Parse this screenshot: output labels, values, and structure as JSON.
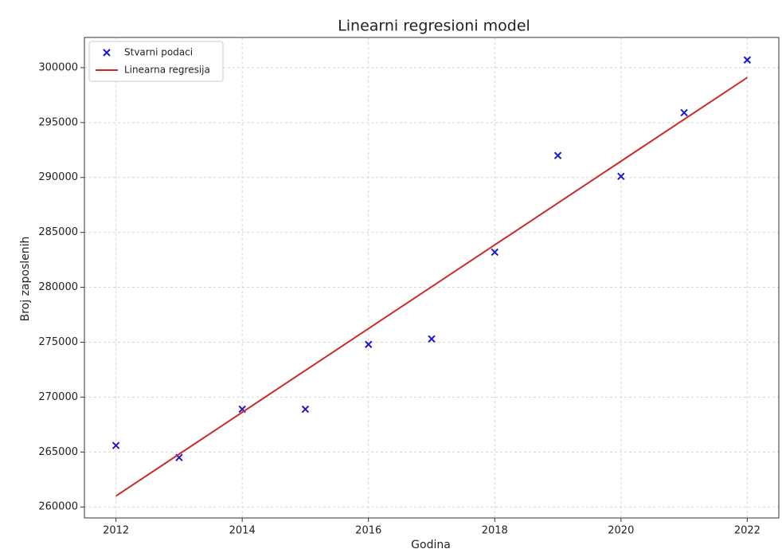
{
  "chart_data": {
    "type": "scatter",
    "title": "Linearni regresioni model",
    "x_label": "Godina",
    "y_label": "Broj zaposlenih",
    "x": [
      2012,
      2013,
      2014,
      2015,
      2016,
      2017,
      2018,
      2019,
      2020,
      2021,
      2022
    ],
    "series": [
      {
        "name": "Stvarni podaci",
        "color": "#1a1acc",
        "marker": "x",
        "values": [
          265600,
          264500,
          268900,
          268900,
          274800,
          275300,
          283200,
          292000,
          290100,
          295900,
          300700
        ]
      },
      {
        "name": "Linearna regresija",
        "color": "#cc2a2a",
        "type": "line",
        "x": [
          2012,
          2022
        ],
        "values": [
          261000,
          299100
        ]
      }
    ],
    "xlim": [
      2011.5,
      2022.5
    ],
    "ylim": [
      259000,
      302750
    ],
    "xticks": [
      2012,
      2014,
      2016,
      2018,
      2020,
      2022
    ],
    "yticks": [
      260000,
      265000,
      270000,
      275000,
      280000,
      285000,
      290000,
      295000,
      300000
    ],
    "grid": true,
    "legend": "upper-left"
  }
}
